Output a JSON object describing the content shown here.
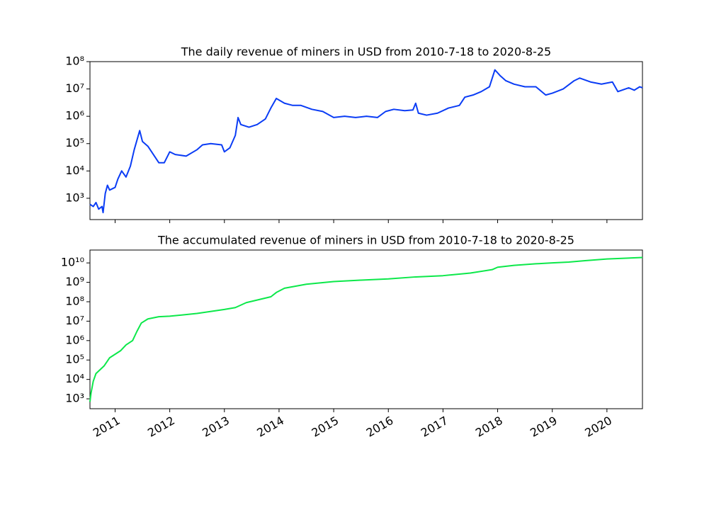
{
  "chart_data": [
    {
      "type": "line",
      "title": "The daily revenue of miners in USD from 2010-7-18 to 2020-8-25",
      "color": "#0a3cf5",
      "log_y": true,
      "x": [
        2010.54,
        2010.6,
        2010.65,
        2010.7,
        2010.76,
        2010.78,
        2010.82,
        2010.86,
        2010.9,
        2011.0,
        2011.05,
        2011.12,
        2011.2,
        2011.28,
        2011.35,
        2011.45,
        2011.5,
        2011.6,
        2011.7,
        2011.8,
        2011.9,
        2012.0,
        2012.1,
        2012.3,
        2012.5,
        2012.6,
        2012.75,
        2012.95,
        2013.0,
        2013.1,
        2013.2,
        2013.25,
        2013.3,
        2013.45,
        2013.6,
        2013.75,
        2013.85,
        2013.95,
        2014.1,
        2014.25,
        2014.4,
        2014.6,
        2014.8,
        2015.0,
        2015.2,
        2015.4,
        2015.6,
        2015.8,
        2015.95,
        2016.1,
        2016.3,
        2016.45,
        2016.5,
        2016.55,
        2016.7,
        2016.9,
        2017.1,
        2017.3,
        2017.4,
        2017.55,
        2017.7,
        2017.85,
        2017.95,
        2018.05,
        2018.15,
        2018.3,
        2018.5,
        2018.7,
        2018.88,
        2019.0,
        2019.2,
        2019.4,
        2019.5,
        2019.7,
        2019.9,
        2020.1,
        2020.2,
        2020.4,
        2020.5,
        2020.6,
        2020.65
      ],
      "values": [
        600,
        500,
        700,
        400,
        500,
        300,
        1500,
        3000,
        2000,
        2500,
        5000,
        10000,
        6000,
        15000,
        60000,
        300000,
        120000,
        80000,
        40000,
        20000,
        20000,
        50000,
        40000,
        35000,
        60000,
        90000,
        100000,
        90000,
        50000,
        70000,
        200000,
        900000,
        500000,
        400000,
        500000,
        800000,
        2000000,
        4500000,
        3000000,
        2500000,
        2500000,
        1800000,
        1500000,
        900000,
        1000000,
        900000,
        1000000,
        900000,
        1500000,
        1800000,
        1600000,
        1700000,
        3000000,
        1300000,
        1100000,
        1300000,
        2000000,
        2500000,
        5000000,
        6000000,
        8000000,
        12000000,
        50000000,
        30000000,
        20000000,
        15000000,
        12000000,
        12000000,
        6000000,
        7000000,
        10000000,
        20000000,
        25000000,
        18000000,
        15000000,
        18000000,
        8000000,
        11000000,
        9000000,
        12000000,
        11000000
      ],
      "xlim": [
        2010.54,
        2020.65
      ],
      "xticks": [
        2011,
        2012,
        2013,
        2014,
        2015,
        2016,
        2017,
        2018,
        2019,
        2020
      ],
      "ylim": [
        166,
        100000000
      ],
      "yticks": [
        {
          "value": 1000,
          "label": "10³"
        },
        {
          "value": 10000,
          "label": "10⁴"
        },
        {
          "value": 100000,
          "label": "10⁵"
        },
        {
          "value": 1000000,
          "label": "10⁶"
        },
        {
          "value": 10000000,
          "label": "10⁷"
        },
        {
          "value": 100000000,
          "label": "10⁸"
        }
      ]
    },
    {
      "type": "line",
      "title": "The accumulated revenue of miners in USD from 2010-7-18 to 2020-8-25",
      "color": "#0ce84a",
      "log_y": true,
      "x": [
        2010.54,
        2010.56,
        2010.6,
        2010.65,
        2010.8,
        2010.9,
        2011.1,
        2011.2,
        2011.32,
        2011.4,
        2011.48,
        2011.6,
        2011.8,
        2012.0,
        2012.5,
        2013.0,
        2013.2,
        2013.4,
        2013.85,
        2013.95,
        2014.1,
        2014.5,
        2015.0,
        2015.5,
        2016.0,
        2016.5,
        2017.0,
        2017.5,
        2017.9,
        2018.0,
        2018.3,
        2018.7,
        2019.0,
        2019.3,
        2019.6,
        2020.0,
        2020.65
      ],
      "values": [
        700,
        2000,
        8000,
        20000,
        50000,
        130000,
        300000,
        600000,
        1000000,
        3000000,
        8000000,
        13000000,
        17000000,
        18000000,
        25000000,
        40000000,
        50000000,
        90000000,
        180000000,
        300000000,
        500000000,
        800000000,
        1100000000,
        1300000000,
        1500000000,
        1900000000,
        2200000000,
        3000000000,
        4500000000,
        6000000000,
        7500000000,
        9000000000,
        10000000000,
        11000000000,
        13000000000,
        16000000000,
        19000000000
      ],
      "xlim": [
        2010.54,
        2020.65
      ],
      "xticks": [
        2011,
        2012,
        2013,
        2014,
        2015,
        2016,
        2017,
        2018,
        2019,
        2020
      ],
      "ylim": [
        310,
        46000000000
      ],
      "yticks": [
        {
          "value": 1000,
          "label": "10³"
        },
        {
          "value": 10000,
          "label": "10⁴"
        },
        {
          "value": 100000,
          "label": "10⁵"
        },
        {
          "value": 1000000,
          "label": "10⁶"
        },
        {
          "value": 10000000,
          "label": "10⁷"
        },
        {
          "value": 100000000,
          "label": "10⁸"
        },
        {
          "value": 1000000000,
          "label": "10⁹"
        },
        {
          "value": 10000000000,
          "label": "10¹⁰"
        }
      ]
    }
  ]
}
